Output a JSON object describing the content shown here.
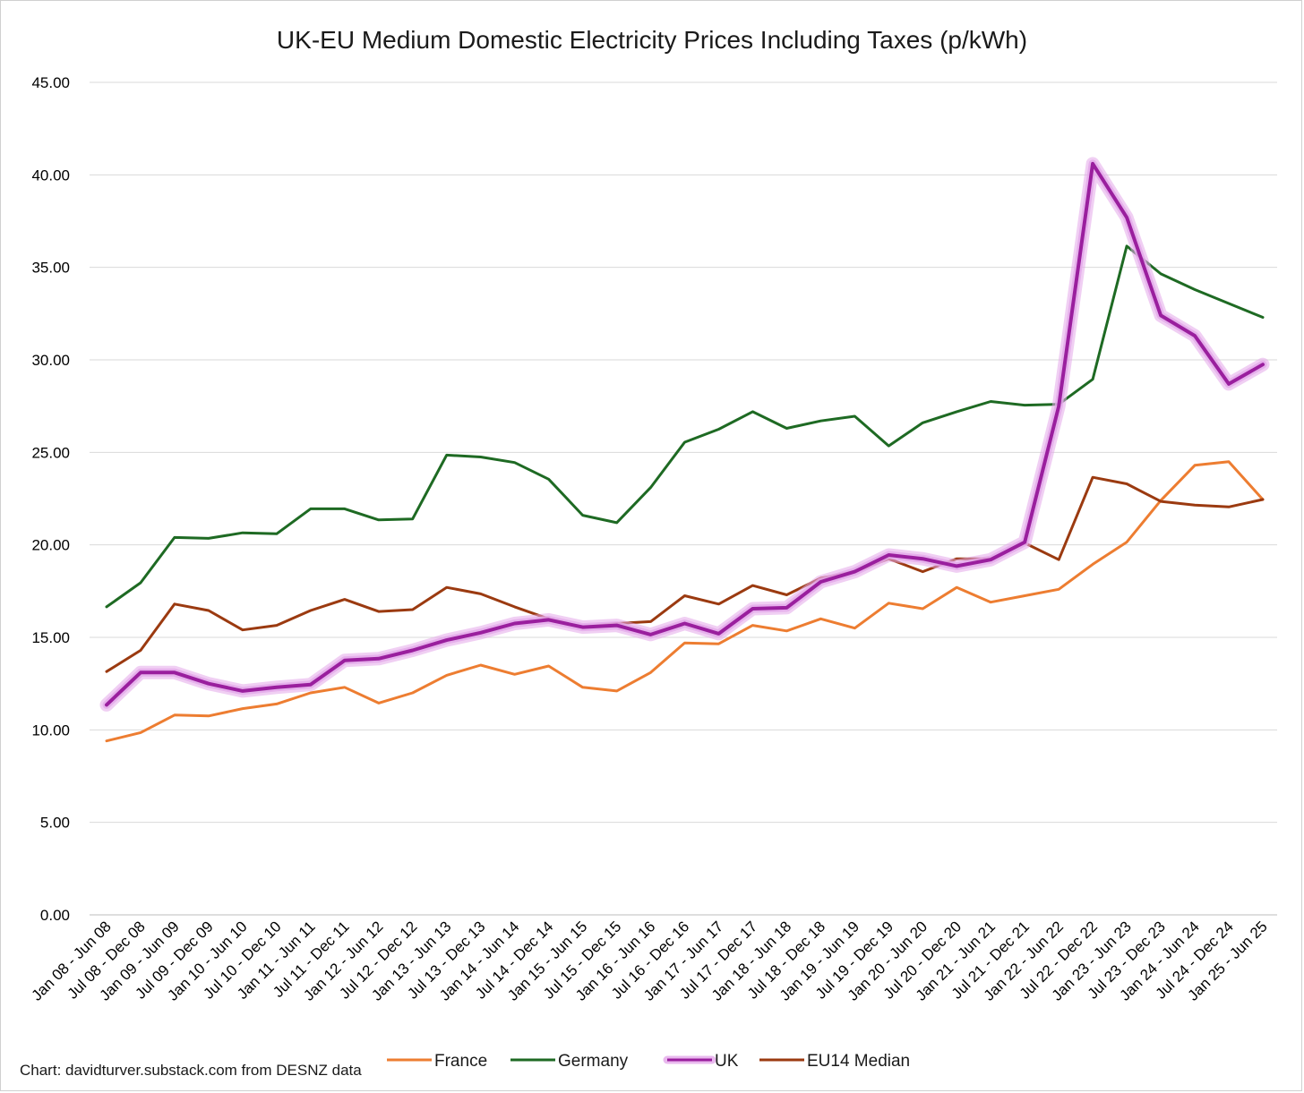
{
  "chart_data": {
    "type": "line",
    "title": "UK-EU Medium Domestic Electricity Prices Including Taxes (p/kWh)",
    "xlabel": "",
    "ylabel": "",
    "ylim": [
      0,
      45
    ],
    "yticks": [
      "0.00",
      "5.00",
      "10.00",
      "15.00",
      "20.00",
      "25.00",
      "30.00",
      "35.00",
      "40.00",
      "45.00"
    ],
    "grid": true,
    "legend_position": "bottom",
    "credit": "Chart: davidturver.substack.com from DESNZ data",
    "categories": [
      "Jan 08 - Jun 08",
      "Jul 08 - Dec 08",
      "Jan 09 - Jun 09",
      "Jul 09 - Dec 09",
      "Jan 10 - Jun 10",
      "Jul 10 - Dec 10",
      "Jan 11 - Jun 11",
      "Jul 11 - Dec 11",
      "Jan 12 - Jun 12",
      "Jul 12 - Dec 12",
      "Jan 13 - Jun 13",
      "Jul 13 - Dec 13",
      "Jan 14 - Jun 14",
      "Jul 14 - Dec 14",
      "Jan 15 - Jun 15",
      "Jul 15 - Dec 15",
      "Jan 16 - Jun 16",
      "Jul 16 - Dec 16",
      "Jan 17 - Jun 17",
      "Jul 17 - Dec 17",
      "Jan 18 - Jun 18",
      "Jul 18 - Dec 18",
      "Jan 19 - Jun 19",
      "Jul 19 - Dec 19",
      "Jan 20 - Jun 20",
      "Jul 20 - Dec 20",
      "Jan 21 - Jun 21",
      "Jul 21 - Dec 21",
      "Jan 22 - Jun 22",
      "Jul 22 - Dec 22",
      "Jan 23 - Jun 23",
      "Jul 23 - Dec 23",
      "Jan 24 - Jun 24",
      "Jul 24 - Dec 24",
      "Jan 25 - Jun 25"
    ],
    "series": [
      {
        "name": "France",
        "color": "#ed7d31",
        "values": [
          9.4,
          9.85,
          10.8,
          10.75,
          11.15,
          11.4,
          12.0,
          12.3,
          11.45,
          12.0,
          12.95,
          13.5,
          13.0,
          13.45,
          12.3,
          12.1,
          13.1,
          14.7,
          14.65,
          15.65,
          15.35,
          16.0,
          15.5,
          16.85,
          16.55,
          17.7,
          16.9,
          17.25,
          17.6,
          18.95,
          20.15,
          22.4,
          24.3,
          24.5,
          22.45
        ]
      },
      {
        "name": "Germany",
        "color": "#1e6a23",
        "values": [
          16.65,
          17.95,
          20.4,
          20.35,
          20.65,
          20.6,
          21.95,
          21.95,
          21.35,
          21.4,
          24.85,
          24.75,
          24.45,
          23.55,
          21.6,
          21.2,
          23.1,
          25.55,
          26.25,
          27.2,
          26.3,
          26.7,
          26.95,
          25.35,
          26.6,
          27.2,
          27.75,
          27.55,
          27.6,
          28.95,
          36.15,
          34.65,
          33.8,
          33.05,
          32.3
        ]
      },
      {
        "name": "UK",
        "color": "#9a1f9e",
        "glow": "#e4a8ea",
        "values": [
          11.35,
          13.1,
          13.1,
          12.5,
          12.1,
          12.3,
          12.45,
          13.75,
          13.85,
          14.3,
          14.85,
          15.25,
          15.75,
          15.95,
          15.55,
          15.65,
          15.15,
          15.75,
          15.2,
          16.55,
          16.6,
          18.0,
          18.55,
          19.45,
          19.25,
          18.85,
          19.2,
          20.15,
          27.5,
          40.6,
          37.7,
          32.4,
          31.3,
          28.7,
          29.75
        ]
      },
      {
        "name": "EU14 Median",
        "color": "#9b3a10",
        "values": [
          13.15,
          14.3,
          16.8,
          16.45,
          15.4,
          15.65,
          16.45,
          17.05,
          16.4,
          16.5,
          17.7,
          17.35,
          16.65,
          16.0,
          15.55,
          15.75,
          15.85,
          17.25,
          16.8,
          17.8,
          17.3,
          18.2,
          18.55,
          19.25,
          18.55,
          19.25,
          19.25,
          20.1,
          19.2,
          23.65,
          23.3,
          22.35,
          22.15,
          22.05,
          22.45
        ]
      }
    ]
  }
}
